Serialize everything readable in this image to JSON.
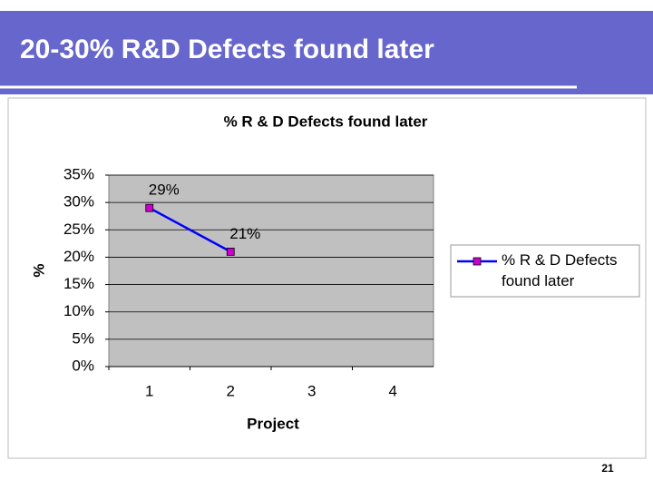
{
  "slide": {
    "title": "20-30% R&D Defects found later",
    "page_number": "21"
  },
  "chart_data": {
    "type": "line",
    "title": "% R & D Defects found later",
    "x_label": "Project",
    "y_label": "%",
    "categories": [
      "1",
      "2",
      "3",
      "4"
    ],
    "series": [
      {
        "name": "% R & D Defects found later",
        "color": "#0000ff",
        "marker_color": "#cc00cc",
        "values": [
          29,
          21,
          null,
          null
        ],
        "value_labels": [
          "29%",
          "21%",
          null,
          null
        ]
      }
    ],
    "ylim": [
      0,
      35
    ],
    "yticks": [
      {
        "value": 0,
        "label": "0%"
      },
      {
        "value": 5,
        "label": "5%"
      },
      {
        "value": 10,
        "label": "10%"
      },
      {
        "value": 15,
        "label": "15%"
      },
      {
        "value": 20,
        "label": "20%"
      },
      {
        "value": 25,
        "label": "25%"
      },
      {
        "value": 30,
        "label": "30%"
      },
      {
        "value": 35,
        "label": "35%"
      }
    ],
    "grid": true,
    "legend": "right",
    "plot_background": "#c0c0c0"
  }
}
